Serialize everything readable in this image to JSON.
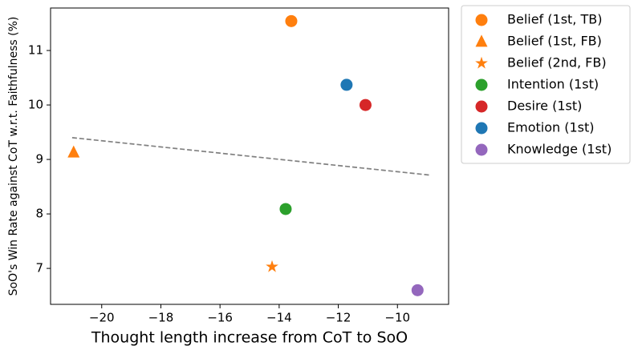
{
  "chart_data": {
    "type": "scatter",
    "x_label": "Thought length increase from CoT to SoO",
    "y_label": "SoO's Win Rate against CoT w.r.t. Faithfulness (%)",
    "xlim": [
      -21.73,
      -8.27
    ],
    "xticks": [
      {
        "value": -20,
        "label": "−20"
      },
      {
        "value": -18,
        "label": "−18"
      },
      {
        "value": -16,
        "label": "−16"
      },
      {
        "value": -14,
        "label": "−14"
      },
      {
        "value": -12,
        "label": "−12"
      },
      {
        "value": -10,
        "label": "−10"
      }
    ],
    "ylim": [
      6.34,
      11.78
    ],
    "yticks": [
      7,
      8,
      9,
      10,
      11
    ],
    "legend": "outside-upper-right",
    "series": [
      {
        "name": "Belief (1st, TB)",
        "color": "#ff7f0e",
        "marker": "circle",
        "x": [
          -13.59
        ],
        "values": [
          11.54
        ]
      },
      {
        "name": "Belief (1st, FB)",
        "color": "#ff7f0e",
        "marker": "triangle",
        "x": [
          -20.95
        ],
        "values": [
          9.13
        ]
      },
      {
        "name": "Belief (2nd, FB)",
        "color": "#ff7f0e",
        "marker": "star",
        "x": [
          -14.24
        ],
        "values": [
          7.03
        ]
      },
      {
        "name": "Intention (1st)",
        "color": "#2ca02c",
        "marker": "circle",
        "x": [
          -13.78
        ],
        "values": [
          8.09
        ]
      },
      {
        "name": "Desire (1st)",
        "color": "#d62728",
        "marker": "circle",
        "x": [
          -11.08
        ],
        "values": [
          10.0
        ]
      },
      {
        "name": "Emotion (1st)",
        "color": "#1f77b4",
        "marker": "circle",
        "x": [
          -11.72
        ],
        "values": [
          10.37
        ]
      },
      {
        "name": "Knowledge (1st)",
        "color": "#9467bd",
        "marker": "circle",
        "x": [
          -9.32
        ],
        "values": [
          6.6
        ]
      }
    ],
    "trendline": {
      "x": [
        -21.0,
        -8.86
      ],
      "values": [
        9.4,
        8.71
      ],
      "color": "#808080",
      "style": "dashed"
    }
  }
}
